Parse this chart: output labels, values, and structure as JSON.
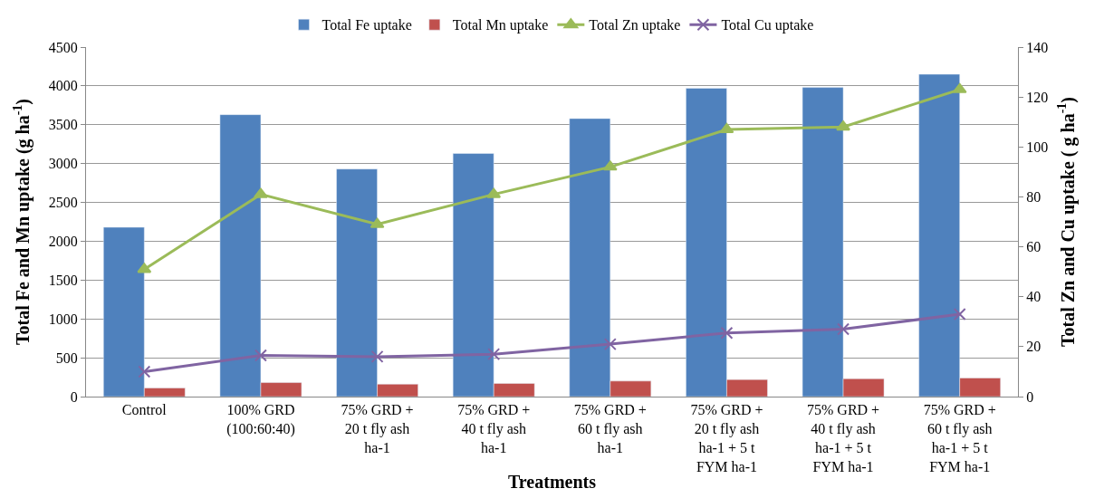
{
  "chart_data": {
    "type": "bar",
    "xlabel": "Treatments",
    "ylabel": "Total Fe and Mn uptake (g ha$^{-1}$)",
    "y2label": "Total Zn and Cu uptake ( g ha$^{-1}$)",
    "categories": [
      "Control",
      "100% GRD\n(100:60:40)",
      "75% GRD +\n20 t fly ash\nha-1",
      "75% GRD +\n40 t fly ash\nha-1",
      "75% GRD +\n60 t fly ash\nha-1",
      "75% GRD +\n20 t fly ash\nha-1 + 5 t\nFYM ha-1",
      "75% GRD +\n40 t fly ash\nha-1 + 5 t\nFYM ha-1",
      "75% GRD +\n60 t fly ash\nha-1 + 5 t\nFYM ha-1"
    ],
    "series": [
      {
        "name": "Total Fe uptake",
        "color": "#4f81bd",
        "values": [
          2180,
          3630,
          2930,
          3130,
          3580,
          3970,
          3980,
          4150
        ]
      },
      {
        "name": "Total Mn uptake",
        "color": "#c0504d",
        "values": [
          110,
          180,
          160,
          170,
          200,
          220,
          230,
          240
        ]
      },
      {
        "name": "Total Zn uptake",
        "type": "line",
        "axis": "y2",
        "marker": "triangle",
        "color": "#9bbb59",
        "values": [
          51,
          81,
          69,
          81,
          92,
          107,
          108,
          123
        ]
      },
      {
        "name": "Total Cu uptake",
        "type": "line",
        "axis": "y2",
        "marker": "cross",
        "color": "#8064a2",
        "values": [
          10,
          16.5,
          16,
          17,
          21,
          25.5,
          27,
          33
        ]
      }
    ],
    "ylim": [
      0,
      4500
    ],
    "yticks": [
      0,
      500,
      1000,
      1500,
      2000,
      2500,
      3000,
      3500,
      4000,
      4500
    ],
    "y2lim": [
      0,
      140
    ],
    "y2ticks": [
      0,
      20,
      40,
      60,
      80,
      100,
      120,
      140
    ],
    "grid": "y",
    "legend": "top"
  }
}
